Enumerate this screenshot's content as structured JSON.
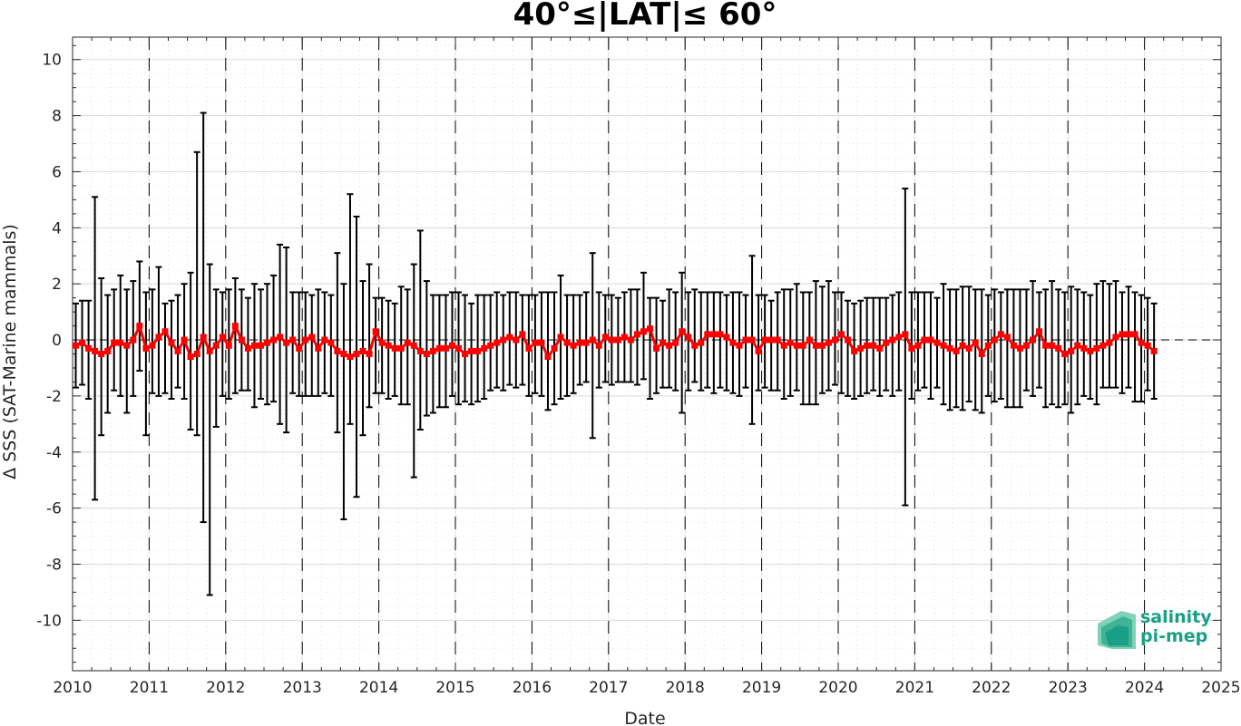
{
  "chart_data": {
    "type": "line",
    "title": "40°≤|LAT|≤ 60°",
    "xlabel": "Date",
    "ylabel": "Δ SSS (SAT-Marine mammals)",
    "xlim": [
      "2010-01-01",
      "2025-01-01"
    ],
    "ylim": [
      -11.8,
      10.8
    ],
    "x_ticks": [
      "2010",
      "2011",
      "2012",
      "2013",
      "2014",
      "2015",
      "2016",
      "2017",
      "2018",
      "2019",
      "2020",
      "2021",
      "2022",
      "2023",
      "2024",
      "2025"
    ],
    "y_ticks": [
      "10",
      "8",
      "6",
      "4",
      "2",
      "0",
      "-2",
      "-4",
      "-6",
      "-8",
      "-10"
    ],
    "y_tick_values": [
      10,
      8,
      6,
      4,
      2,
      0,
      -2,
      -4,
      -6,
      -8,
      -10
    ],
    "grid": true,
    "year_separators": "dashed vertical lines at Jan 1 of each year 2011–2024",
    "zero_reference": "dashed horizontal line at 0",
    "series": [
      {
        "style": "red squares with red connecting line, black error bars (whiskers)",
        "color": "#ff0000",
        "errorbar_color": "#000000",
        "x": [
          "2010-01",
          "2010-02",
          "2010-03",
          "2010-04",
          "2010-05",
          "2010-06",
          "2010-07",
          "2010-08",
          "2010-09",
          "2010-10",
          "2010-11",
          "2010-12",
          "2011-01",
          "2011-02",
          "2011-03",
          "2011-04",
          "2011-05",
          "2011-06",
          "2011-07",
          "2011-08",
          "2011-09",
          "2011-10",
          "2011-11",
          "2011-12",
          "2012-01",
          "2012-02",
          "2012-03",
          "2012-04",
          "2012-05",
          "2012-06",
          "2012-07",
          "2012-08",
          "2012-09",
          "2012-10",
          "2012-11",
          "2012-12",
          "2013-01",
          "2013-02",
          "2013-03",
          "2013-04",
          "2013-05",
          "2013-06",
          "2013-07",
          "2013-08",
          "2013-09",
          "2013-10",
          "2013-11",
          "2013-12",
          "2014-01",
          "2014-02",
          "2014-03",
          "2014-04",
          "2014-05",
          "2014-06",
          "2014-07",
          "2014-08",
          "2014-09",
          "2014-10",
          "2014-11",
          "2014-12",
          "2015-01",
          "2015-02",
          "2015-03",
          "2015-04",
          "2015-05",
          "2015-06",
          "2015-07",
          "2015-08",
          "2015-09",
          "2015-10",
          "2015-11",
          "2015-12",
          "2016-01",
          "2016-02",
          "2016-03",
          "2016-04",
          "2016-05",
          "2016-06",
          "2016-07",
          "2016-08",
          "2016-09",
          "2016-10",
          "2016-11",
          "2016-12",
          "2017-01",
          "2017-02",
          "2017-03",
          "2017-04",
          "2017-05",
          "2017-06",
          "2017-07",
          "2017-08",
          "2017-09",
          "2017-10",
          "2017-11",
          "2017-12",
          "2018-01",
          "2018-02",
          "2018-03",
          "2018-04",
          "2018-05",
          "2018-06",
          "2018-07",
          "2018-08",
          "2018-09",
          "2018-10",
          "2018-11",
          "2018-12",
          "2019-01",
          "2019-02",
          "2019-03",
          "2019-04",
          "2019-05",
          "2019-06",
          "2019-07",
          "2019-08",
          "2019-09",
          "2019-10",
          "2019-11",
          "2019-12",
          "2020-01",
          "2020-02",
          "2020-03",
          "2020-04",
          "2020-05",
          "2020-06",
          "2020-07",
          "2020-08",
          "2020-09",
          "2020-10",
          "2020-11",
          "2020-12",
          "2021-01",
          "2021-02",
          "2021-03",
          "2021-04",
          "2021-05",
          "2021-06",
          "2021-07",
          "2021-08",
          "2021-09",
          "2021-10",
          "2021-11",
          "2021-12",
          "2022-01",
          "2022-02",
          "2022-03",
          "2022-04",
          "2022-05",
          "2022-06",
          "2022-07",
          "2022-08",
          "2022-09",
          "2022-10",
          "2022-11",
          "2022-12",
          "2023-01",
          "2023-02",
          "2023-03",
          "2023-04",
          "2023-05",
          "2023-06",
          "2023-07",
          "2023-08",
          "2023-09",
          "2023-10",
          "2023-11",
          "2023-12",
          "2024-01",
          "2024-02"
        ],
        "y": [
          -0.2,
          -0.1,
          -0.3,
          -0.4,
          -0.5,
          -0.4,
          -0.1,
          -0.1,
          -0.2,
          0.0,
          0.5,
          -0.3,
          -0.2,
          0.1,
          0.3,
          -0.1,
          -0.4,
          0.0,
          -0.6,
          -0.5,
          0.1,
          -0.4,
          -0.2,
          0.1,
          -0.2,
          0.5,
          0.0,
          -0.3,
          -0.2,
          -0.2,
          -0.1,
          0.0,
          0.1,
          -0.1,
          0.0,
          -0.3,
          0.0,
          0.1,
          -0.3,
          0.0,
          -0.1,
          -0.4,
          -0.5,
          -0.6,
          -0.5,
          -0.4,
          -0.5,
          0.3,
          -0.1,
          -0.2,
          -0.3,
          -0.3,
          -0.1,
          -0.2,
          -0.4,
          -0.5,
          -0.4,
          -0.3,
          -0.3,
          -0.2,
          -0.3,
          -0.5,
          -0.4,
          -0.4,
          -0.3,
          -0.2,
          -0.1,
          0.0,
          0.1,
          0.0,
          0.2,
          -0.3,
          -0.1,
          -0.1,
          -0.6,
          -0.3,
          0.1,
          -0.1,
          -0.2,
          -0.1,
          -0.1,
          0.0,
          -0.2,
          0.1,
          0.0,
          0.0,
          0.1,
          0.0,
          0.2,
          0.3,
          0.4,
          -0.3,
          -0.1,
          -0.2,
          -0.1,
          0.3,
          0.1,
          -0.2,
          -0.1,
          0.2,
          0.2,
          0.2,
          0.1,
          -0.1,
          -0.2,
          0.0,
          0.0,
          -0.4,
          0.0,
          0.0,
          0.0,
          -0.2,
          -0.1,
          -0.2,
          -0.2,
          0.0,
          -0.2,
          -0.2,
          -0.1,
          0.0,
          0.2,
          0.0,
          -0.4,
          -0.3,
          -0.2,
          -0.2,
          -0.3,
          -0.1,
          0.0,
          0.1,
          0.2,
          -0.3,
          -0.2,
          0.0,
          0.0,
          -0.1,
          -0.2,
          -0.3,
          -0.4,
          -0.2,
          -0.3,
          -0.1,
          -0.5,
          -0.2,
          0.0,
          0.2,
          0.1,
          -0.2,
          -0.3,
          -0.2,
          0.0,
          0.3,
          -0.2,
          -0.2,
          -0.3,
          -0.5,
          -0.4,
          -0.2,
          -0.3,
          -0.4,
          -0.3,
          -0.2,
          -0.1,
          0.1,
          0.2,
          0.2,
          0.2,
          -0.1,
          -0.2,
          -0.4
        ],
        "err_upper": [
          1.3,
          1.4,
          1.4,
          5.1,
          2.2,
          1.6,
          1.8,
          2.3,
          1.8,
          2.1,
          2.8,
          1.7,
          1.8,
          2.6,
          1.3,
          1.4,
          1.6,
          2.0,
          2.4,
          6.7,
          8.1,
          2.7,
          1.8,
          1.7,
          1.8,
          2.2,
          1.8,
          1.5,
          2.0,
          1.8,
          2.0,
          2.3,
          3.4,
          3.3,
          1.7,
          1.7,
          1.7,
          1.6,
          1.8,
          1.7,
          1.6,
          3.1,
          2.0,
          5.2,
          4.4,
          2.1,
          2.7,
          1.5,
          1.5,
          1.4,
          1.3,
          1.9,
          1.8,
          2.7,
          3.9,
          2.1,
          1.6,
          1.6,
          1.6,
          1.7,
          1.7,
          1.6,
          1.3,
          1.6,
          1.6,
          1.6,
          1.7,
          1.6,
          1.7,
          1.7,
          1.6,
          1.6,
          1.6,
          1.7,
          1.7,
          1.7,
          2.3,
          1.6,
          1.6,
          1.6,
          1.7,
          3.1,
          1.7,
          1.6,
          1.6,
          1.5,
          1.7,
          1.8,
          1.8,
          2.4,
          1.5,
          1.5,
          1.4,
          1.8,
          1.7,
          2.4,
          1.7,
          1.8,
          1.7,
          1.7,
          1.7,
          1.7,
          1.6,
          1.7,
          1.7,
          1.6,
          3.0,
          1.6,
          1.6,
          1.4,
          1.7,
          1.8,
          1.8,
          2.0,
          1.7,
          1.7,
          2.1,
          1.9,
          2.1,
          1.7,
          1.7,
          1.4,
          1.3,
          1.4,
          1.5,
          1.5,
          1.5,
          1.5,
          1.6,
          1.7,
          5.4,
          1.7,
          1.7,
          1.7,
          1.7,
          1.5,
          2.0,
          1.8,
          1.8,
          1.9,
          1.9,
          1.8,
          1.8,
          1.6,
          1.8,
          1.7,
          1.8,
          1.8,
          1.8,
          1.8,
          2.1,
          1.7,
          1.8,
          2.1,
          1.8,
          1.7,
          1.9,
          1.8,
          1.7,
          1.6,
          2.0,
          2.1,
          2.0,
          2.1,
          1.7,
          1.9,
          1.7,
          1.6,
          1.5,
          1.3
        ],
        "err_lower": [
          -1.7,
          -1.6,
          -2.1,
          -5.7,
          -3.4,
          -2.6,
          -1.8,
          -2.0,
          -2.6,
          -2.0,
          -1.1,
          -3.4,
          -1.9,
          -2.0,
          -1.9,
          -2.1,
          -1.7,
          -2.1,
          -3.2,
          -3.4,
          -6.5,
          -9.1,
          -3.1,
          -2.0,
          -2.1,
          -1.9,
          -1.8,
          -1.8,
          -2.4,
          -2.1,
          -2.3,
          -2.2,
          -3.0,
          -3.3,
          -1.9,
          -2.0,
          -2.0,
          -2.0,
          -2.0,
          -1.9,
          -2.0,
          -3.3,
          -6.4,
          -3.0,
          -5.6,
          -3.4,
          -2.4,
          -1.9,
          -1.9,
          -2.1,
          -2.0,
          -2.3,
          -2.3,
          -4.9,
          -3.2,
          -2.7,
          -2.6,
          -2.4,
          -2.4,
          -2.0,
          -2.3,
          -2.2,
          -2.3,
          -2.2,
          -2.1,
          -1.8,
          -1.7,
          -1.8,
          -1.6,
          -1.7,
          -1.6,
          -2.0,
          -1.9,
          -2.0,
          -2.5,
          -2.3,
          -2.1,
          -2.0,
          -1.9,
          -1.6,
          -1.5,
          -3.5,
          -1.7,
          -1.5,
          -1.6,
          -1.5,
          -1.5,
          -1.5,
          -1.6,
          -1.4,
          -2.1,
          -1.9,
          -1.7,
          -1.7,
          -1.8,
          -2.6,
          -1.8,
          -1.5,
          -1.8,
          -1.7,
          -1.9,
          -1.7,
          -1.8,
          -1.9,
          -2.0,
          -1.7,
          -3.0,
          -1.8,
          -1.7,
          -1.8,
          -1.8,
          -2.1,
          -2.0,
          -1.8,
          -2.3,
          -2.3,
          -2.3,
          -1.9,
          -1.8,
          -1.6,
          -1.9,
          -2.0,
          -2.1,
          -2.0,
          -1.9,
          -1.8,
          -2.0,
          -1.8,
          -2.0,
          -1.8,
          -5.9,
          -2.1,
          -1.8,
          -1.7,
          -2.1,
          -1.7,
          -2.3,
          -2.5,
          -2.4,
          -2.5,
          -2.2,
          -2.5,
          -2.6,
          -2.0,
          -2.2,
          -2.1,
          -2.4,
          -2.4,
          -2.4,
          -1.8,
          -2.0,
          -1.7,
          -2.4,
          -2.3,
          -2.4,
          -2.3,
          -2.6,
          -2.3,
          -2.0,
          -2.1,
          -2.3,
          -1.7,
          -1.7,
          -1.7,
          -1.9,
          -1.7,
          -2.2,
          -2.2,
          -1.8,
          -2.1
        ]
      }
    ]
  },
  "logo": {
    "line1": "salinity",
    "line2": "pi-mep",
    "accent": "#1a9f86"
  }
}
